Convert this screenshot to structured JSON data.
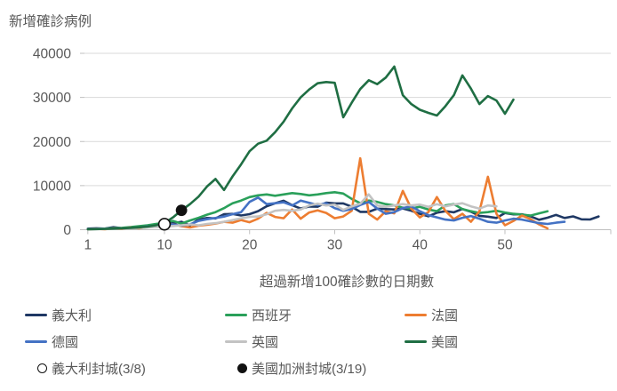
{
  "chart_data": {
    "type": "line",
    "title": "新增確診病例",
    "xlabel": "超過新增100確診數的日期數",
    "x_ticks": [
      1,
      10,
      20,
      30,
      40,
      50
    ],
    "y_ticks": [
      0,
      10000,
      20000,
      30000,
      40000
    ],
    "xlim": [
      1,
      62
    ],
    "ylim": [
      0,
      41000
    ],
    "grid": "horizontal",
    "legend_position": "bottom",
    "axis_color": "#BFBFBF",
    "gridline_color": "#D9D9D9",
    "text_color": "#595959",
    "series": [
      {
        "name": "義大利",
        "color": "#1F3864",
        "values": [
          240,
          330,
          240,
          560,
          350,
          470,
          590,
          770,
          780,
          1250,
          1500,
          1800,
          980,
          2310,
          2650,
          2550,
          3500,
          3590,
          3230,
          3530,
          4210,
          5320,
          5990,
          6560,
          5560,
          4790,
          5250,
          5210,
          6150,
          5960,
          5970,
          5220,
          4050,
          4050,
          4780,
          4670,
          4590,
          4810,
          4320,
          3600,
          3040,
          3840,
          4200,
          3950,
          4690,
          4090,
          3150,
          2970,
          2670,
          3790,
          3490,
          3490,
          3050,
          2260,
          2730,
          3370,
          2650,
          3020,
          2360,
          2320,
          3000
        ]
      },
      {
        "name": "西班牙",
        "color": "#2AA05A",
        "values": [
          100,
          160,
          250,
          370,
          430,
          600,
          780,
          1000,
          1300,
          1600,
          2000,
          1400,
          2100,
          2700,
          3400,
          4000,
          4900,
          6000,
          6600,
          7400,
          7800,
          8000,
          7700,
          8000,
          8300,
          8100,
          7800,
          8000,
          8300,
          8500,
          8200,
          7000,
          6000,
          6600,
          6300,
          5800,
          5500,
          5000,
          4800,
          5200,
          4600,
          4200,
          5500,
          5800,
          4700,
          4200,
          3800,
          4000,
          4300,
          3900,
          3600,
          3400,
          3200,
          3700,
          4200
        ]
      },
      {
        "name": "法國",
        "color": "#ED7D31",
        "values": [
          130,
          190,
          100,
          290,
          180,
          500,
          300,
          600,
          800,
          1100,
          1200,
          800,
          500,
          900,
          1100,
          1400,
          1800,
          1600,
          2200,
          1700,
          2500,
          3800,
          2900,
          2600,
          4600,
          2500,
          3900,
          4400,
          3800,
          2600,
          3000,
          4300,
          16200,
          3600,
          2300,
          4200,
          3700,
          8800,
          4800,
          2800,
          4000,
          7400,
          4300,
          2400,
          3600,
          1800,
          4200,
          12000,
          3600,
          1000,
          2000,
          3200,
          2400,
          1200,
          300
        ]
      },
      {
        "name": "德國",
        "color": "#4472C4",
        "values": [
          150,
          190,
          240,
          270,
          300,
          410,
          510,
          740,
          890,
          1040,
          1180,
          910,
          1210,
          2000,
          2370,
          2660,
          2990,
          3530,
          3970,
          6300,
          7300,
          5800,
          6000,
          6200,
          5500,
          6600,
          6100,
          5600,
          6000,
          4900,
          4300,
          4700,
          5600,
          6300,
          4800,
          3600,
          4000,
          4900,
          5300,
          4200,
          3300,
          2800,
          2300,
          2100,
          2700,
          3100,
          2500,
          1800,
          1600,
          2100,
          2500,
          2300,
          1900,
          1500,
          1300,
          1600,
          1800
        ]
      },
      {
        "name": "英國",
        "color": "#C3C3C3",
        "values": [
          120,
          150,
          190,
          230,
          280,
          340,
          400,
          500,
          620,
          700,
          850,
          1000,
          1200,
          1000,
          1300,
          1500,
          1800,
          2200,
          2600,
          2900,
          3000,
          3500,
          4300,
          4500,
          4300,
          4600,
          5500,
          5900,
          5500,
          5700,
          4500,
          5300,
          5900,
          8000,
          5500,
          5200,
          5500,
          5800,
          5500,
          5700,
          5200,
          5800,
          5300,
          5700,
          6000,
          5300,
          4800,
          5500,
          5300
        ]
      },
      {
        "name": "美國",
        "color": "#1F6E43",
        "values": [
          120,
          150,
          190,
          250,
          320,
          420,
          540,
          700,
          1000,
          1500,
          2800,
          4400,
          5800,
          7500,
          9800,
          11500,
          9000,
          12100,
          14800,
          17800,
          19500,
          20200,
          22100,
          24500,
          27500,
          30000,
          31800,
          33200,
          33500,
          33300,
          25500,
          28800,
          31900,
          33900,
          33000,
          34500,
          37000,
          30500,
          28500,
          27200,
          26500,
          25900,
          28000,
          30500,
          35000,
          32000,
          28500,
          30300,
          29300,
          26300,
          29500
        ]
      }
    ],
    "markers": [
      {
        "label": "義大利封城(3/8)",
        "style": "open-circle",
        "day": 10,
        "value": 1250
      },
      {
        "label": "美國加洲封城(3/19)",
        "style": "filled-circle",
        "day": 12,
        "value": 4400
      }
    ]
  }
}
